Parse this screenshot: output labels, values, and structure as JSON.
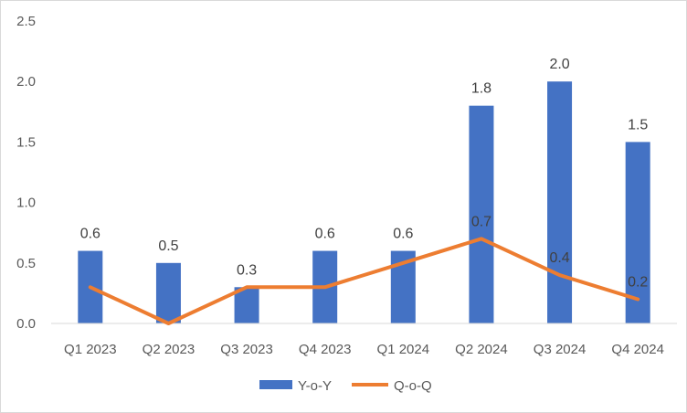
{
  "chart_data": {
    "type": "bar+line",
    "categories": [
      "Q1 2023",
      "Q2 2023",
      "Q3 2023",
      "Q4 2023",
      "Q1 2024",
      "Q2 2024",
      "Q3 2024",
      "Q4 2024"
    ],
    "series": [
      {
        "name": "Y-o-Y",
        "type": "bar",
        "color": "#4472C4",
        "values": [
          0.6,
          0.5,
          0.3,
          0.6,
          0.6,
          1.8,
          2.0,
          1.5
        ],
        "labels": [
          "0.6",
          "0.5",
          "0.3",
          "0.6",
          "0.6",
          "1.8",
          "2.0",
          "1.5"
        ]
      },
      {
        "name": "Q-o-Q",
        "type": "line",
        "color": "#ED7D31",
        "values": [
          0.3,
          0.0,
          0.3,
          0.3,
          0.5,
          0.7,
          0.4,
          0.2
        ],
        "labels": [
          "",
          "",
          "",
          "",
          "",
          "0.7",
          "0.4",
          "0.2"
        ]
      }
    ],
    "ylim": [
      0,
      2.5
    ],
    "yticks": [
      "0.0",
      "0.5",
      "1.0",
      "1.5",
      "2.0",
      "2.5"
    ],
    "grid": false,
    "legend": "bottom"
  }
}
